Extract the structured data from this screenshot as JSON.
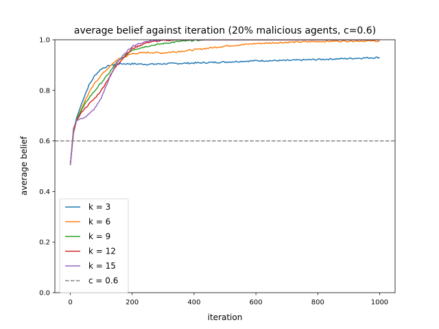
{
  "chart_data": {
    "type": "line",
    "title": "average belief against iteration (20% malicious agents, c=0.6)",
    "xlabel": "iteration",
    "ylabel": "average belief",
    "xlim": [
      -50,
      1050
    ],
    "ylim": [
      0.0,
      1.0
    ],
    "xticks": [
      0,
      200,
      400,
      600,
      800,
      1000
    ],
    "yticks": [
      0.0,
      0.2,
      0.4,
      0.6,
      0.8,
      1.0
    ],
    "ytick_labels": [
      "0.0",
      "0.2",
      "0.4",
      "0.6",
      "0.8",
      "1.0"
    ],
    "grid": false,
    "legend_position": "lower-left",
    "series": [
      {
        "name": "k = 3",
        "color": "#1f77b4",
        "x": [
          0,
          10,
          20,
          40,
          60,
          80,
          100,
          120,
          150,
          200,
          250,
          300,
          400,
          500,
          600,
          700,
          800,
          900,
          1000
        ],
        "y": [
          0.505,
          0.64,
          0.69,
          0.76,
          0.82,
          0.86,
          0.885,
          0.895,
          0.905,
          0.905,
          0.903,
          0.905,
          0.908,
          0.912,
          0.917,
          0.918,
          0.922,
          0.926,
          0.93
        ]
      },
      {
        "name": "k = 6",
        "color": "#ff7f0e",
        "x": [
          0,
          10,
          20,
          40,
          60,
          80,
          100,
          120,
          150,
          200,
          250,
          300,
          400,
          500,
          600,
          700,
          800,
          900,
          1000
        ],
        "y": [
          0.505,
          0.63,
          0.68,
          0.74,
          0.79,
          0.83,
          0.86,
          0.885,
          0.92,
          0.945,
          0.95,
          0.948,
          0.96,
          0.975,
          0.985,
          0.99,
          0.993,
          0.995,
          0.995
        ]
      },
      {
        "name": "k = 9",
        "color": "#2ca02c",
        "x": [
          0,
          10,
          20,
          40,
          60,
          80,
          100,
          120,
          150,
          200,
          250,
          300,
          350,
          400,
          450,
          500,
          600,
          700,
          800,
          900,
          1000
        ],
        "y": [
          0.505,
          0.63,
          0.685,
          0.73,
          0.77,
          0.8,
          0.83,
          0.86,
          0.91,
          0.96,
          0.975,
          0.985,
          0.993,
          0.998,
          1.0,
          1.0,
          1.0,
          1.0,
          1.0,
          1.0,
          1.0
        ]
      },
      {
        "name": "k = 12",
        "color": "#d62728",
        "x": [
          0,
          10,
          20,
          40,
          60,
          80,
          100,
          120,
          150,
          200,
          250,
          300,
          350,
          400,
          500,
          600,
          700,
          800,
          900,
          1000
        ],
        "y": [
          0.505,
          0.64,
          0.68,
          0.72,
          0.745,
          0.77,
          0.8,
          0.84,
          0.9,
          0.965,
          0.99,
          0.997,
          1.0,
          1.0,
          1.0,
          1.0,
          1.0,
          1.0,
          1.0,
          1.0
        ]
      },
      {
        "name": "k = 15",
        "color": "#9467bd",
        "x": [
          0,
          10,
          20,
          40,
          60,
          80,
          100,
          120,
          150,
          200,
          250,
          300,
          350,
          400,
          500,
          600,
          700,
          800,
          900,
          1000
        ],
        "y": [
          0.505,
          0.65,
          0.68,
          0.69,
          0.705,
          0.73,
          0.77,
          0.83,
          0.91,
          0.975,
          0.995,
          1.0,
          1.0,
          1.0,
          1.0,
          1.0,
          1.0,
          1.0,
          1.0,
          1.0
        ]
      }
    ],
    "reference_line": {
      "name": "c = 0.6",
      "y": 0.6,
      "color": "#808080",
      "style": "dashed"
    }
  }
}
